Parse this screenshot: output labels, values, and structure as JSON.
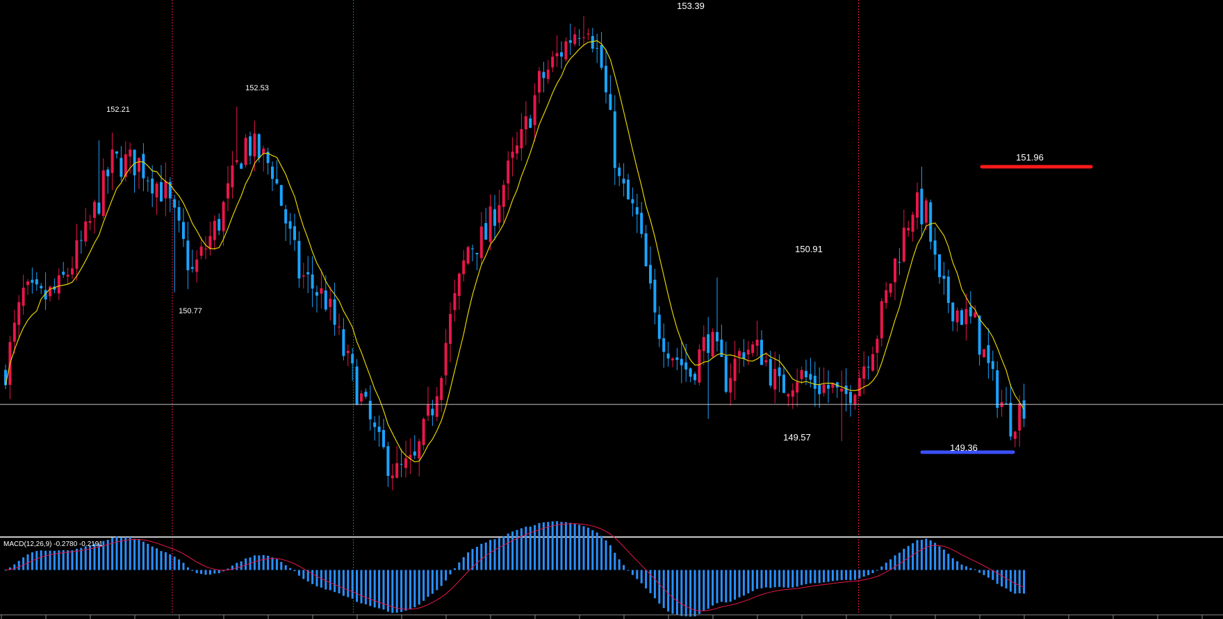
{
  "colors": {
    "background": "#000000",
    "bull": "#e8174a",
    "bear": "#1aa3ff",
    "ma": "#e6d300",
    "macd_hist": "#2a90ff",
    "macd_signal": "#e8174a",
    "resistance": "#ff1a1a",
    "support": "#3a50ff",
    "crosshair": "#c8c8c8",
    "separator_red": "#e8174a",
    "separator_green": "#1a8a1a",
    "axis": "#8a8a8a"
  },
  "chart_data": [
    {
      "type": "candlestick",
      "indicators": [
        "moving-average"
      ],
      "ylim": [
        148.47,
        153.54
      ],
      "annotations": [
        {
          "text": "152.21",
          "value": 152.21
        },
        {
          "text": "152.53",
          "value": 152.53
        },
        {
          "text": "150.77",
          "value": 150.77
        },
        {
          "text": "153.39",
          "value": 153.39
        },
        {
          "text": "150.91",
          "value": 150.91
        },
        {
          "text": "149.57",
          "value": 149.57
        },
        {
          "text": "149.36",
          "value": 149.36
        },
        {
          "text": "151.96",
          "value": 151.96
        }
      ],
      "resistance_level": 151.96,
      "support_level": 149.36,
      "crosshair_price": 149.72,
      "anchors": [
        [
          0,
          150.05
        ],
        [
          4,
          150.75
        ],
        [
          8,
          150.7
        ],
        [
          12,
          150.8
        ],
        [
          18,
          151.3
        ],
        [
          24,
          152.0
        ],
        [
          30,
          152.0
        ],
        [
          36,
          151.7
        ],
        [
          42,
          150.95
        ],
        [
          48,
          151.45
        ],
        [
          54,
          152.2
        ],
        [
          60,
          151.95
        ],
        [
          66,
          150.95
        ],
        [
          72,
          150.7
        ],
        [
          76,
          150.2
        ],
        [
          80,
          149.75
        ],
        [
          84,
          149.3
        ],
        [
          88,
          149.05
        ],
        [
          92,
          149.15
        ],
        [
          96,
          149.7
        ],
        [
          100,
          150.5
        ],
        [
          104,
          151.2
        ],
        [
          108,
          151.3
        ],
        [
          112,
          151.8
        ],
        [
          116,
          152.2
        ],
        [
          120,
          152.75
        ],
        [
          124,
          153.0
        ],
        [
          128,
          153.25
        ],
        [
          131,
          153.35
        ],
        [
          134,
          152.9
        ],
        [
          138,
          151.8
        ],
        [
          142,
          151.45
        ],
        [
          146,
          150.5
        ],
        [
          150,
          150.2
        ],
        [
          154,
          150.0
        ],
        [
          158,
          150.35
        ],
        [
          162,
          149.95
        ],
        [
          166,
          150.25
        ],
        [
          170,
          150.2
        ],
        [
          174,
          149.85
        ],
        [
          178,
          150.0
        ],
        [
          182,
          149.9
        ],
        [
          186,
          149.85
        ],
        [
          188,
          149.72
        ],
        [
          192,
          150.0
        ],
        [
          196,
          150.4
        ],
        [
          200,
          151.05
        ],
        [
          204,
          151.6
        ],
        [
          207,
          151.5
        ],
        [
          210,
          150.8
        ],
        [
          214,
          150.6
        ],
        [
          218,
          150.45
        ],
        [
          222,
          149.9
        ],
        [
          226,
          149.55
        ],
        [
          229,
          149.72
        ]
      ]
    },
    {
      "type": "bar",
      "title": "MACD(12,26,9) -0.2780 -0.2191",
      "series": [
        {
          "name": "MACD",
          "kind": "histogram"
        },
        {
          "name": "Signal",
          "kind": "line"
        }
      ],
      "ylim": [
        -0.5,
        0.4
      ]
    }
  ]
}
